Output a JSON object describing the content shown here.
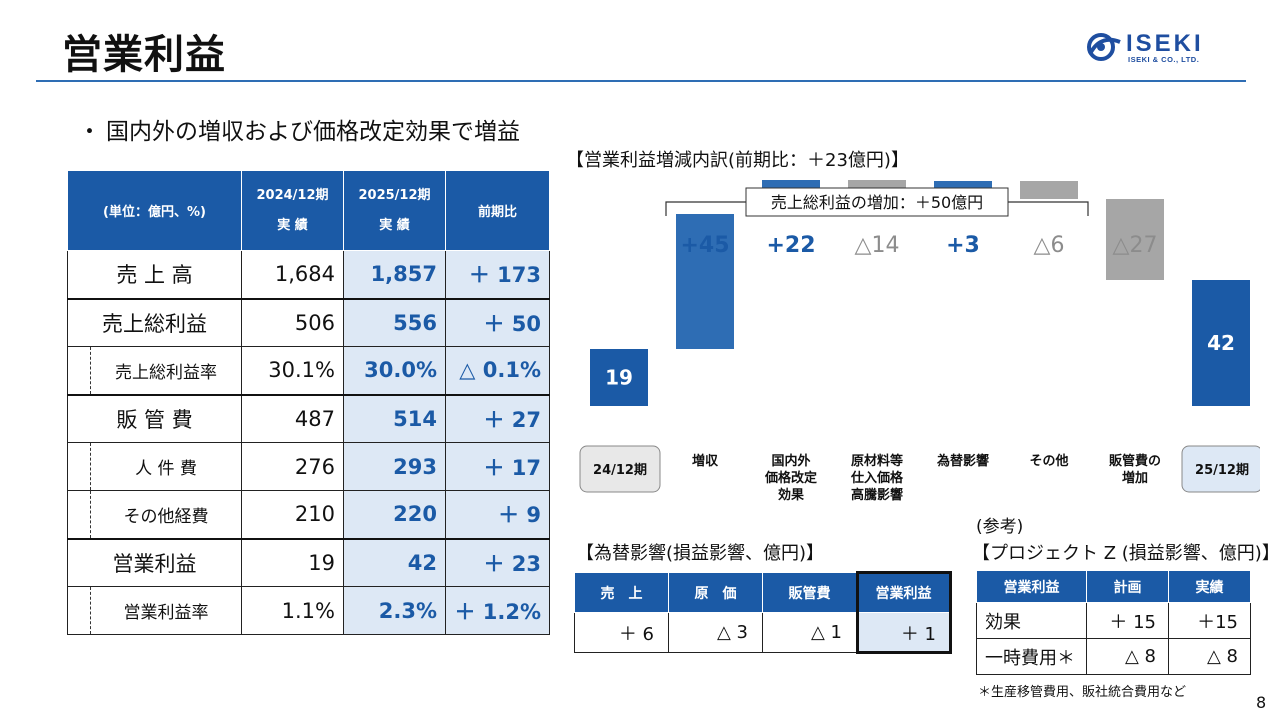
{
  "title": "営業利益",
  "logo": {
    "name": "ISEKI",
    "subname": "ISEKI & CO., LTD."
  },
  "bullet": {
    "mark": "・",
    "text": "国内外の増収および価格改定効果で増益"
  },
  "main_table": {
    "unit_label": "(単位：億円、%)",
    "col2": [
      "2024/12期",
      "実 績"
    ],
    "col3": [
      "2025/12期",
      "実 績"
    ],
    "col4": "前期比",
    "rows": [
      {
        "label": "売 上 高",
        "prev": "1,684",
        "curr": "1,857",
        "diff": "＋ 173",
        "sub": false
      },
      {
        "label": "売上総利益",
        "prev": "506",
        "curr": "556",
        "diff": "＋ 50",
        "sub": false
      },
      {
        "label": "売上総利益率",
        "prev": "30.1%",
        "curr": "30.0%",
        "diff": "△ 0.1%",
        "sub": true
      },
      {
        "label": "販 管 費",
        "prev": "487",
        "curr": "514",
        "diff": "＋ 27",
        "sub": false
      },
      {
        "label": "人 件 費",
        "prev": "276",
        "curr": "293",
        "diff": "＋ 17",
        "sub": true
      },
      {
        "label": "その他経費",
        "prev": "210",
        "curr": "220",
        "diff": "＋ 9",
        "sub": true
      },
      {
        "label": "営業利益",
        "prev": "19",
        "curr": "42",
        "diff": "＋ 23",
        "sub": false
      },
      {
        "label": "営業利益率",
        "prev": "1.1%",
        "curr": "2.3%",
        "diff": "＋ 1.2%",
        "sub": true
      }
    ]
  },
  "chart_title": "【営業利益増減内訳(前期比：＋23億円)】",
  "chart_data": {
    "type": "bar",
    "subtype": "waterfall",
    "categories": [
      "24/12期",
      "増収",
      "国内外価格改定効果",
      "原材料等仕入価格高騰影響",
      "為替影響",
      "その他",
      "販管費の増加",
      "25/12期"
    ],
    "category_display": [
      [
        "24/12期"
      ],
      [
        "増収"
      ],
      [
        "国内外",
        "価格改定",
        "効果"
      ],
      [
        "原材料等",
        "仕入価格",
        "高騰影響"
      ],
      [
        "為替影響"
      ],
      [
        "その他"
      ],
      [
        "販管費の",
        "増加"
      ],
      [
        "25/12期"
      ]
    ],
    "values": [
      19,
      45,
      22,
      -14,
      3,
      -6,
      -27,
      42
    ],
    "labels": [
      "19",
      "+45",
      "+22",
      "△14",
      "+3",
      "△6",
      "△27",
      "42"
    ],
    "bar_kinds": [
      "total",
      "increase",
      "increase",
      "decrease",
      "increase",
      "decrease",
      "decrease",
      "total"
    ],
    "bracket_label": "売上総利益の増加：＋50億円",
    "bracket_span": [
      1,
      5
    ],
    "colors": {
      "total": "#1b5aa6",
      "increase": "#2e6db4",
      "decrease": "#a6a6a6",
      "label_up": "#1b5aa6",
      "label_down": "#8c8c8c",
      "total_box": "#e8e8e8",
      "total_box_end": "#dde8f5"
    }
  },
  "fx": {
    "title": "【為替影響(損益影響、億円)】",
    "headers": [
      "売　上",
      "原　価",
      "販管費",
      "営業利益"
    ],
    "values": [
      "＋ 6",
      "△ 3",
      "△ 1",
      "＋ 1"
    ]
  },
  "project_z": {
    "ref": "(参考)",
    "title": "【プロジェクト Z (損益影響、億円)】",
    "headers": [
      "営業利益",
      "計画",
      "実績"
    ],
    "rows": [
      {
        "label": "効果",
        "plan": "＋ 15",
        "actual": "＋15"
      },
      {
        "label": "一時費用＊",
        "plan": "△ 8",
        "actual": "△ 8"
      }
    ],
    "footnote": "＊生産移管費用、販社統合費用など"
  },
  "page_number": "8"
}
